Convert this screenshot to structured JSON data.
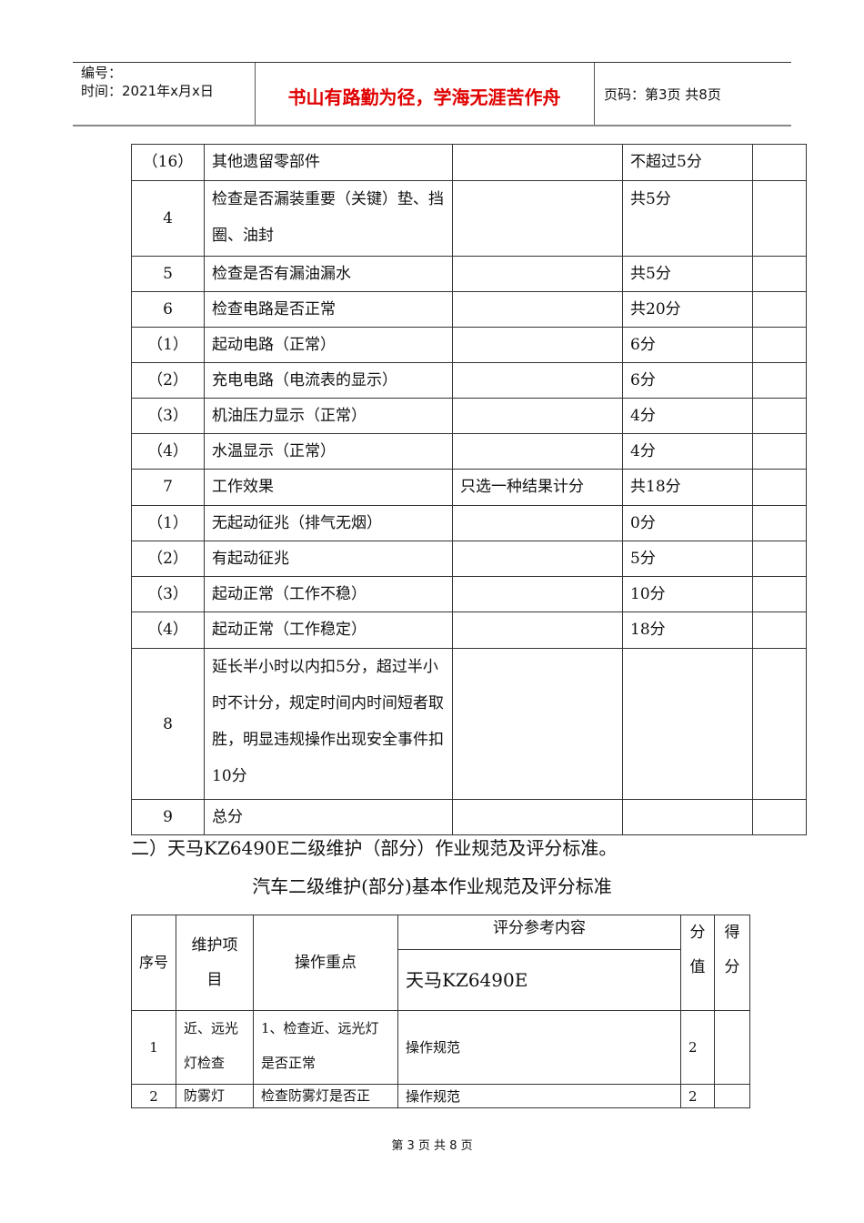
{
  "header": {
    "number_label": "编号：",
    "time_label": "时间：2021年x月x日",
    "motto": "书山有路勤为径，学海无涯苦作舟",
    "page_info": "页码：第3页  共8页",
    "motto_color": "#e00000"
  },
  "table1": {
    "rows": [
      [
        "（16）",
        "其他遗留零部件",
        "",
        "不超过5分",
        ""
      ],
      [
        "4",
        "检查是否漏装重要（关键）垫、挡圈、油封",
        "",
        "共5分",
        ""
      ],
      [
        "5",
        "检查是否有漏油漏水",
        "",
        "共5分",
        ""
      ],
      [
        "6",
        "检查电路是否正常",
        "",
        "共20分",
        ""
      ],
      [
        "（1）",
        "起动电路（正常）",
        "",
        "6分",
        ""
      ],
      [
        "（2）",
        "充电电路（电流表的显示）",
        "",
        "6分",
        ""
      ],
      [
        "（3）",
        "机油压力显示（正常）",
        "",
        "4分",
        ""
      ],
      [
        "（4）",
        "水温显示（正常）",
        "",
        "4分",
        ""
      ],
      [
        "7",
        "工作效果",
        "只选一种结果计分",
        "共18分",
        ""
      ],
      [
        "（1）",
        "无起动征兆（排气无烟）",
        "",
        "0分",
        ""
      ],
      [
        "（2）",
        "有起动征兆",
        "",
        "5分",
        ""
      ],
      [
        "（3）",
        "起动正常（工作不稳）",
        "",
        "10分",
        ""
      ],
      [
        "（4）",
        "起动正常（工作稳定）",
        "",
        "18分",
        ""
      ],
      [
        "8",
        "延长半小时以内扣5分，超过半小时不计分，规定时间内时间短者取胜，明显违规操作出现安全事件扣10分",
        "",
        "",
        ""
      ],
      [
        "9",
        "总分",
        "",
        "",
        ""
      ]
    ]
  },
  "section_heading": "二）天马KZ6490E二级维护（部分）作业规范及评分标准。",
  "table2_title": "汽车二级维护(部分)基本作业规范及评分标准",
  "table2": {
    "headers": {
      "no": "序号",
      "item": "维护项目",
      "focus": "操作重点",
      "ref": "评分参考内容",
      "model": "天马KZ6490E",
      "score": "分值",
      "got": "得分"
    },
    "rows": [
      [
        "1",
        "近、远光灯检查",
        "1、检查近、远光灯是否正常",
        "操作规范",
        "2",
        ""
      ],
      [
        "2",
        "防雾灯",
        "检查防雾灯是否正",
        "操作规范",
        "2",
        ""
      ]
    ]
  },
  "footer": "第 3 页 共 8 页"
}
